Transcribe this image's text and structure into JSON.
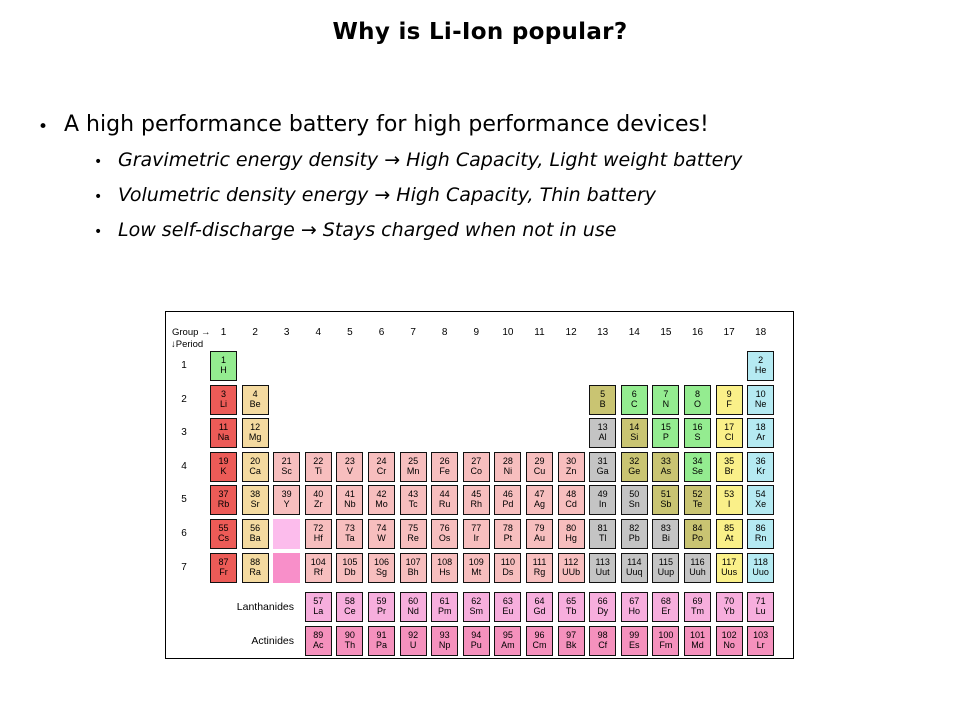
{
  "slide": {
    "title": "Why is Li-Ion popular?",
    "bullet_icon": "•",
    "bullet": "A high performance battery for high performance devices!",
    "sub_bullets": [
      "Gravimetric energy density → High Capacity, Light weight battery",
      "Volumetric density energy → High Capacity, Thin battery",
      "Low self-discharge → Stays charged when not in use"
    ]
  },
  "table": {
    "corner": {
      "group": "Group →",
      "period": "↓Period"
    },
    "group_numbers": [
      "1",
      "2",
      "3",
      "4",
      "5",
      "6",
      "7",
      "8",
      "9",
      "10",
      "11",
      "12",
      "13",
      "14",
      "15",
      "16",
      "17",
      "18"
    ],
    "period_numbers": [
      "1",
      "2",
      "3",
      "4",
      "5",
      "6",
      "7"
    ],
    "row_labels": [
      "Lanthanides",
      "Actinides"
    ],
    "colors": {
      "alkali": "#EC5B57",
      "alkaline": "#F4DAA0",
      "transition": "#F7BEBE",
      "post": "#C4C4C4",
      "metalloid": "#C9C472",
      "nonmetal": "#94EC90",
      "halogen": "#FAF089",
      "noble": "#B5EAF2",
      "lanthanide": "#F7AEDD",
      "actinide": "#F591BD",
      "lanthanide_placeholder": "#FCBCEC",
      "actinide_placeholder": "#F88FC9"
    },
    "placeholders": [
      {
        "row": 6,
        "col": 3,
        "cat": "lanthanide_placeholder"
      },
      {
        "row": 7,
        "col": 3,
        "cat": "actinide_placeholder"
      }
    ],
    "cells": [
      [
        1,
        1,
        "1",
        "H",
        "nonmetal"
      ],
      [
        1,
        18,
        "2",
        "He",
        "noble"
      ],
      [
        2,
        1,
        "3",
        "Li",
        "alkali"
      ],
      [
        2,
        2,
        "4",
        "Be",
        "alkaline"
      ],
      [
        2,
        13,
        "5",
        "B",
        "metalloid"
      ],
      [
        2,
        14,
        "6",
        "C",
        "nonmetal"
      ],
      [
        2,
        15,
        "7",
        "N",
        "nonmetal"
      ],
      [
        2,
        16,
        "8",
        "O",
        "nonmetal"
      ],
      [
        2,
        17,
        "9",
        "F",
        "halogen"
      ],
      [
        2,
        18,
        "10",
        "Ne",
        "noble"
      ],
      [
        3,
        1,
        "11",
        "Na",
        "alkali"
      ],
      [
        3,
        2,
        "12",
        "Mg",
        "alkaline"
      ],
      [
        3,
        13,
        "13",
        "Al",
        "post"
      ],
      [
        3,
        14,
        "14",
        "Si",
        "metalloid"
      ],
      [
        3,
        15,
        "15",
        "P",
        "nonmetal"
      ],
      [
        3,
        16,
        "16",
        "S",
        "nonmetal"
      ],
      [
        3,
        17,
        "17",
        "Cl",
        "halogen"
      ],
      [
        3,
        18,
        "18",
        "Ar",
        "noble"
      ],
      [
        4,
        1,
        "19",
        "K",
        "alkali"
      ],
      [
        4,
        2,
        "20",
        "Ca",
        "alkaline"
      ],
      [
        4,
        3,
        "21",
        "Sc",
        "transition"
      ],
      [
        4,
        4,
        "22",
        "Ti",
        "transition"
      ],
      [
        4,
        5,
        "23",
        "V",
        "transition"
      ],
      [
        4,
        6,
        "24",
        "Cr",
        "transition"
      ],
      [
        4,
        7,
        "25",
        "Mn",
        "transition"
      ],
      [
        4,
        8,
        "26",
        "Fe",
        "transition"
      ],
      [
        4,
        9,
        "27",
        "Co",
        "transition"
      ],
      [
        4,
        10,
        "28",
        "Ni",
        "transition"
      ],
      [
        4,
        11,
        "29",
        "Cu",
        "transition"
      ],
      [
        4,
        12,
        "30",
        "Zn",
        "transition"
      ],
      [
        4,
        13,
        "31",
        "Ga",
        "post"
      ],
      [
        4,
        14,
        "32",
        "Ge",
        "metalloid"
      ],
      [
        4,
        15,
        "33",
        "As",
        "metalloid"
      ],
      [
        4,
        16,
        "34",
        "Se",
        "nonmetal"
      ],
      [
        4,
        17,
        "35",
        "Br",
        "halogen"
      ],
      [
        4,
        18,
        "36",
        "Kr",
        "noble"
      ],
      [
        5,
        1,
        "37",
        "Rb",
        "alkali"
      ],
      [
        5,
        2,
        "38",
        "Sr",
        "alkaline"
      ],
      [
        5,
        3,
        "39",
        "Y",
        "transition"
      ],
      [
        5,
        4,
        "40",
        "Zr",
        "transition"
      ],
      [
        5,
        5,
        "41",
        "Nb",
        "transition"
      ],
      [
        5,
        6,
        "42",
        "Mo",
        "transition"
      ],
      [
        5,
        7,
        "43",
        "Tc",
        "transition"
      ],
      [
        5,
        8,
        "44",
        "Ru",
        "transition"
      ],
      [
        5,
        9,
        "45",
        "Rh",
        "transition"
      ],
      [
        5,
        10,
        "46",
        "Pd",
        "transition"
      ],
      [
        5,
        11,
        "47",
        "Ag",
        "transition"
      ],
      [
        5,
        12,
        "48",
        "Cd",
        "transition"
      ],
      [
        5,
        13,
        "49",
        "In",
        "post"
      ],
      [
        5,
        14,
        "50",
        "Sn",
        "post"
      ],
      [
        5,
        15,
        "51",
        "Sb",
        "metalloid"
      ],
      [
        5,
        16,
        "52",
        "Te",
        "metalloid"
      ],
      [
        5,
        17,
        "53",
        "I",
        "halogen"
      ],
      [
        5,
        18,
        "54",
        "Xe",
        "noble"
      ],
      [
        6,
        1,
        "55",
        "Cs",
        "alkali"
      ],
      [
        6,
        2,
        "56",
        "Ba",
        "alkaline"
      ],
      [
        6,
        4,
        "72",
        "Hf",
        "transition"
      ],
      [
        6,
        5,
        "73",
        "Ta",
        "transition"
      ],
      [
        6,
        6,
        "74",
        "W",
        "transition"
      ],
      [
        6,
        7,
        "75",
        "Re",
        "transition"
      ],
      [
        6,
        8,
        "76",
        "Os",
        "transition"
      ],
      [
        6,
        9,
        "77",
        "Ir",
        "transition"
      ],
      [
        6,
        10,
        "78",
        "Pt",
        "transition"
      ],
      [
        6,
        11,
        "79",
        "Au",
        "transition"
      ],
      [
        6,
        12,
        "80",
        "Hg",
        "transition"
      ],
      [
        6,
        13,
        "81",
        "Tl",
        "post"
      ],
      [
        6,
        14,
        "82",
        "Pb",
        "post"
      ],
      [
        6,
        15,
        "83",
        "Bi",
        "post"
      ],
      [
        6,
        16,
        "84",
        "Po",
        "metalloid"
      ],
      [
        6,
        17,
        "85",
        "At",
        "halogen"
      ],
      [
        6,
        18,
        "86",
        "Rn",
        "noble"
      ],
      [
        7,
        1,
        "87",
        "Fr",
        "alkali"
      ],
      [
        7,
        2,
        "88",
        "Ra",
        "alkaline"
      ],
      [
        7,
        4,
        "104",
        "Rf",
        "transition"
      ],
      [
        7,
        5,
        "105",
        "Db",
        "transition"
      ],
      [
        7,
        6,
        "106",
        "Sg",
        "transition"
      ],
      [
        7,
        7,
        "107",
        "Bh",
        "transition"
      ],
      [
        7,
        8,
        "108",
        "Hs",
        "transition"
      ],
      [
        7,
        9,
        "109",
        "Mt",
        "transition"
      ],
      [
        7,
        10,
        "110",
        "Ds",
        "transition"
      ],
      [
        7,
        11,
        "111",
        "Rg",
        "transition"
      ],
      [
        7,
        12,
        "112",
        "UUb",
        "transition"
      ],
      [
        7,
        13,
        "113",
        "Uut",
        "post"
      ],
      [
        7,
        14,
        "114",
        "Uuq",
        "post"
      ],
      [
        7,
        15,
        "115",
        "Uup",
        "post"
      ],
      [
        7,
        16,
        "116",
        "Uuh",
        "post"
      ],
      [
        7,
        17,
        "117",
        "Uus",
        "halogen"
      ],
      [
        7,
        18,
        "118",
        "Uuo",
        "noble"
      ],
      [
        "L",
        4,
        "57",
        "La",
        "lanthanide"
      ],
      [
        "L",
        5,
        "58",
        "Ce",
        "lanthanide"
      ],
      [
        "L",
        6,
        "59",
        "Pr",
        "lanthanide"
      ],
      [
        "L",
        7,
        "60",
        "Nd",
        "lanthanide"
      ],
      [
        "L",
        8,
        "61",
        "Pm",
        "lanthanide"
      ],
      [
        "L",
        9,
        "62",
        "Sm",
        "lanthanide"
      ],
      [
        "L",
        10,
        "63",
        "Eu",
        "lanthanide"
      ],
      [
        "L",
        11,
        "64",
        "Gd",
        "lanthanide"
      ],
      [
        "L",
        12,
        "65",
        "Tb",
        "lanthanide"
      ],
      [
        "L",
        13,
        "66",
        "Dy",
        "lanthanide"
      ],
      [
        "L",
        14,
        "67",
        "Ho",
        "lanthanide"
      ],
      [
        "L",
        15,
        "68",
        "Er",
        "lanthanide"
      ],
      [
        "L",
        16,
        "69",
        "Tm",
        "lanthanide"
      ],
      [
        "L",
        17,
        "70",
        "Yb",
        "lanthanide"
      ],
      [
        "L",
        18,
        "71",
        "Lu",
        "lanthanide"
      ],
      [
        "A",
        4,
        "89",
        "Ac",
        "actinide"
      ],
      [
        "A",
        5,
        "90",
        "Th",
        "actinide"
      ],
      [
        "A",
        6,
        "91",
        "Pa",
        "actinide"
      ],
      [
        "A",
        7,
        "92",
        "U",
        "actinide"
      ],
      [
        "A",
        8,
        "93",
        "Np",
        "actinide"
      ],
      [
        "A",
        9,
        "94",
        "Pu",
        "actinide"
      ],
      [
        "A",
        10,
        "95",
        "Am",
        "actinide"
      ],
      [
        "A",
        11,
        "96",
        "Cm",
        "actinide"
      ],
      [
        "A",
        12,
        "97",
        "Bk",
        "actinide"
      ],
      [
        "A",
        13,
        "98",
        "Cf",
        "actinide"
      ],
      [
        "A",
        14,
        "99",
        "Es",
        "actinide"
      ],
      [
        "A",
        15,
        "100",
        "Fm",
        "actinide"
      ],
      [
        "A",
        16,
        "101",
        "Md",
        "actinide"
      ],
      [
        "A",
        17,
        "102",
        "No",
        "actinide"
      ],
      [
        "A",
        18,
        "103",
        "Lr",
        "actinide"
      ]
    ]
  }
}
